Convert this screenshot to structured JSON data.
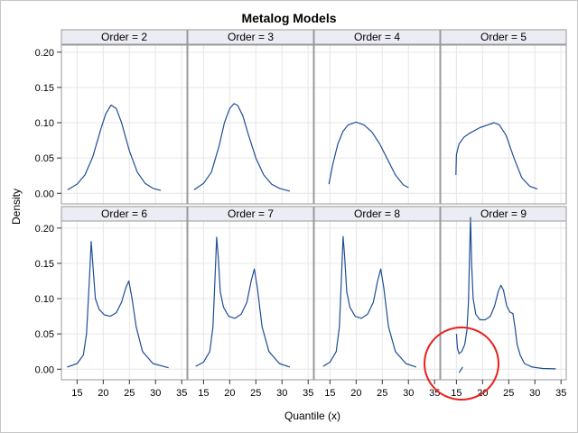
{
  "chart_data": {
    "type": "line",
    "title": "Metalog Models",
    "xlabel": "Quantile (x)",
    "ylabel": "Density",
    "xlim": [
      12,
      36
    ],
    "ylim": [
      -0.015,
      0.21
    ],
    "xticks": [
      15,
      20,
      25,
      30,
      35
    ],
    "xtick_labels": [
      "15",
      "20",
      "25",
      "30",
      "35"
    ],
    "yticks": [
      0,
      0.05,
      0.1,
      0.15,
      0.2
    ],
    "ytick_labels": [
      "0.00",
      "0.05",
      "0.10",
      "0.15",
      "0.20"
    ],
    "grid": true,
    "line_color": "#1f4e96",
    "annotation_color": "#e8201c",
    "panels": [
      {
        "label": "Order = 2",
        "x": [
          13.2,
          15,
          16.5,
          18,
          19.5,
          20.5,
          21.5,
          22.5,
          23.5,
          25,
          26.5,
          28,
          29.5,
          31
        ],
        "y": [
          0.005,
          0.013,
          0.026,
          0.052,
          0.09,
          0.113,
          0.125,
          0.12,
          0.1,
          0.06,
          0.03,
          0.014,
          0.007,
          0.004
        ]
      },
      {
        "label": "Order = 3",
        "x": [
          13.2,
          15,
          16.5,
          18,
          19,
          20,
          20.8,
          21.5,
          22.5,
          23.5,
          25,
          26.5,
          28,
          29.5,
          31.5
        ],
        "y": [
          0.005,
          0.014,
          0.03,
          0.068,
          0.1,
          0.12,
          0.127,
          0.125,
          0.11,
          0.085,
          0.05,
          0.026,
          0.013,
          0.007,
          0.003
        ]
      },
      {
        "label": "Order = 4",
        "x": [
          14.8,
          15.5,
          16.5,
          17.5,
          18.5,
          20,
          21.5,
          23,
          24.5,
          26,
          27.5,
          29,
          30
        ],
        "y": [
          0.013,
          0.04,
          0.07,
          0.088,
          0.097,
          0.101,
          0.097,
          0.087,
          0.07,
          0.048,
          0.026,
          0.012,
          0.008
        ]
      },
      {
        "label": "Order = 5",
        "x": [
          14.9,
          15,
          15.5,
          16.5,
          17.5,
          18.5,
          19.5,
          21,
          22.2,
          23.2,
          24.5,
          26,
          27.5,
          29,
          30.5
        ],
        "y": [
          0.026,
          0.055,
          0.07,
          0.08,
          0.085,
          0.089,
          0.093,
          0.097,
          0.1,
          0.097,
          0.082,
          0.05,
          0.022,
          0.01,
          0.006
        ]
      },
      {
        "label": "Order = 6",
        "x": [
          13.1,
          15,
          16.2,
          16.8,
          17.3,
          17.7,
          18.1,
          18.5,
          19.2,
          20.2,
          21.3,
          22.5,
          23.5,
          24.3,
          24.9,
          25.5,
          26.3,
          27.5,
          29.5,
          32.5
        ],
        "y": [
          0.003,
          0.008,
          0.02,
          0.05,
          0.12,
          0.181,
          0.14,
          0.1,
          0.085,
          0.077,
          0.075,
          0.08,
          0.095,
          0.115,
          0.125,
          0.1,
          0.06,
          0.025,
          0.008,
          0.002
        ]
      },
      {
        "label": "Order = 7",
        "x": [
          13.5,
          15,
          16.2,
          16.8,
          17.2,
          17.5,
          17.8,
          18.2,
          18.8,
          19.8,
          21,
          22.2,
          23.3,
          24.1,
          24.7,
          25.3,
          26.2,
          27.5,
          29.5,
          31.5
        ],
        "y": [
          0.004,
          0.01,
          0.025,
          0.06,
          0.13,
          0.187,
          0.16,
          0.11,
          0.088,
          0.075,
          0.072,
          0.078,
          0.095,
          0.125,
          0.142,
          0.115,
          0.06,
          0.025,
          0.008,
          0.003
        ]
      },
      {
        "label": "Order = 8",
        "x": [
          13.7,
          15,
          16.2,
          16.8,
          17.2,
          17.5,
          17.8,
          18.2,
          18.8,
          19.8,
          21,
          22.2,
          23.3,
          24.1,
          24.7,
          25.3,
          26.2,
          27.5,
          29.5,
          31.5
        ],
        "y": [
          0.004,
          0.01,
          0.025,
          0.06,
          0.13,
          0.188,
          0.16,
          0.11,
          0.088,
          0.075,
          0.072,
          0.078,
          0.095,
          0.125,
          0.142,
          0.115,
          0.06,
          0.025,
          0.008,
          0.003
        ]
      },
      {
        "label": "Order = 9",
        "x": [
          15,
          15.2,
          15.5,
          16,
          16.6,
          17.0,
          17.3,
          17.5,
          17.7,
          17.9,
          18.2,
          18.7,
          19.5,
          20.5,
          21.5,
          22.3,
          23,
          23.5,
          24,
          24.6,
          25.2,
          25.8,
          26.2,
          26.6,
          27.2,
          28,
          29.5,
          31.5,
          34
        ],
        "y": [
          0.05,
          0.03,
          0.022,
          0.025,
          0.035,
          0.055,
          0.095,
          0.16,
          0.215,
          0.15,
          0.1,
          0.078,
          0.07,
          0.07,
          0.075,
          0.09,
          0.11,
          0.119,
          0.112,
          0.09,
          0.081,
          0.079,
          0.06,
          0.035,
          0.02,
          0.008,
          0.003,
          0.001,
          0.0005
        ],
        "extra_x": [
          15.5,
          16.2
        ],
        "extra_y": [
          -0.005,
          0.003
        ]
      }
    ]
  }
}
